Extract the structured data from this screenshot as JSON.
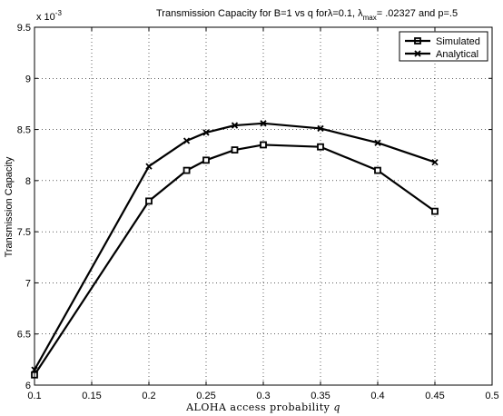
{
  "chart_data": {
    "type": "line",
    "title_main": "Transmission Capacity for B=1 vs q for",
    "title_lambda": "λ=0.1, λ",
    "title_lambda_sub": "max",
    "title_tail": "= .02327 and  p=.5",
    "xlabel_prefix": "ALOHA access probability",
    "xlabel_var": "q",
    "ylabel": "Transmission Capacity",
    "y_multiplier": "x 10",
    "y_multiplier_exp": "-3",
    "xlim": [
      0.1,
      0.5
    ],
    "ylim": [
      6,
      9.5
    ],
    "xticks": [
      "0.1",
      "0.15",
      "0.2",
      "0.25",
      "0.3",
      "0.35",
      "0.4",
      "0.45",
      "0.5"
    ],
    "xtick_values": [
      0.1,
      0.15,
      0.2,
      0.25,
      0.3,
      0.35,
      0.4,
      0.45,
      0.5
    ],
    "yticks": [
      "6",
      "6.5",
      "7",
      "7.5",
      "8",
      "8.5",
      "9",
      "9.5"
    ],
    "ytick_values": [
      6,
      6.5,
      7,
      7.5,
      8,
      8.5,
      9,
      9.5
    ],
    "grid": true,
    "legend_position": "top-right",
    "series": [
      {
        "name": "Simulated",
        "marker": "square",
        "color": "#000000",
        "x": [
          0.1,
          0.2,
          0.233,
          0.25,
          0.275,
          0.3,
          0.35,
          0.4,
          0.45
        ],
        "y": [
          6.1,
          7.8,
          8.1,
          8.2,
          8.3,
          8.35,
          8.33,
          8.1,
          7.7
        ]
      },
      {
        "name": "Analytical",
        "marker": "x",
        "color": "#000000",
        "x": [
          0.1,
          0.2,
          0.233,
          0.25,
          0.275,
          0.3,
          0.35,
          0.4,
          0.45
        ],
        "y": [
          6.15,
          8.14,
          8.39,
          8.47,
          8.54,
          8.56,
          8.51,
          8.37,
          8.18
        ]
      }
    ]
  }
}
